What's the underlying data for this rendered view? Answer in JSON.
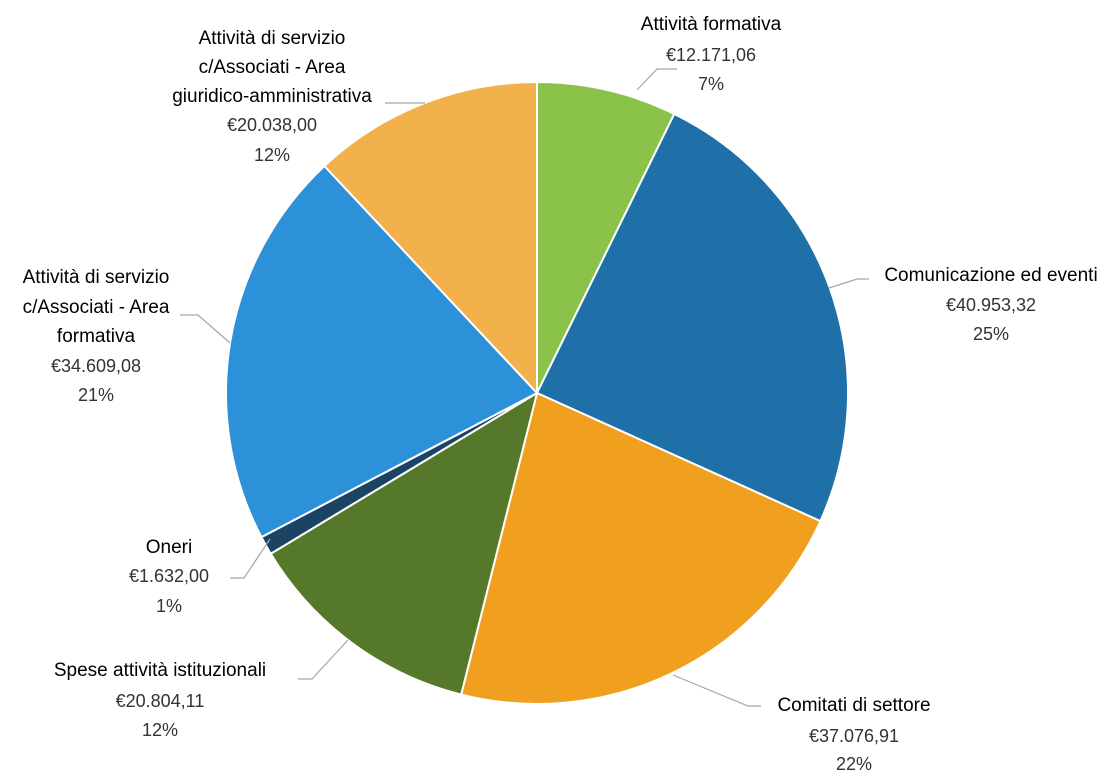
{
  "chart_data": {
    "type": "pie",
    "currency": "€",
    "slices": [
      {
        "name": "Attività formativa",
        "value": 12171.06,
        "value_label": "€12.171,06",
        "percent_label": "7%",
        "color": "#8bc34a"
      },
      {
        "name": "Comunicazione ed eventi",
        "value": 40953.32,
        "value_label": "€40.953,32",
        "percent_label": "25%",
        "color": "#1f6fa9"
      },
      {
        "name": "Comitati di settore",
        "value": 37076.91,
        "value_label": "€37.076,91",
        "percent_label": "22%",
        "color": "#f0a01e"
      },
      {
        "name": "Spese attività istituzionali",
        "value": 20804.11,
        "value_label": "€20.804,11",
        "percent_label": "12%",
        "color": "#55782a"
      },
      {
        "name": "Oneri",
        "value": 1632.0,
        "value_label": "€1.632,00",
        "percent_label": "1%",
        "color": "#1b4464"
      },
      {
        "name": "Attività di servizio c/Associati - Area formativa",
        "value": 34609.08,
        "value_label": "€34.609,08",
        "percent_label": "21%",
        "color": "#2d91d9"
      },
      {
        "name": "Attività di servizio c/Associati - Area giuridico-amministrativa",
        "value": 20038.0,
        "value_label": "€20.038,00",
        "percent_label": "12%",
        "color": "#f2b14a"
      }
    ]
  }
}
